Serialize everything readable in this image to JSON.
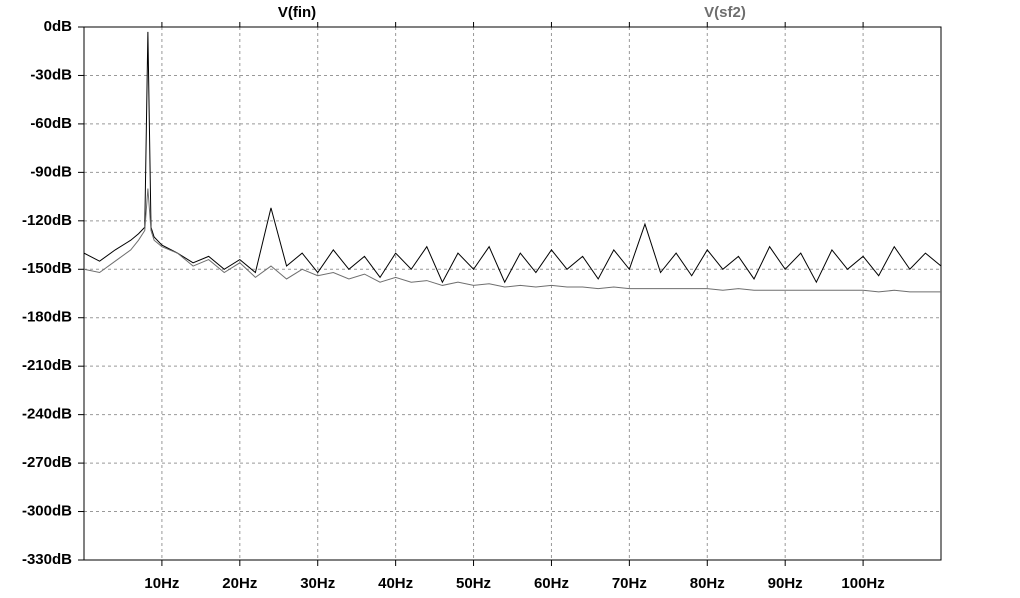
{
  "chart_data": {
    "type": "line",
    "x": [
      0,
      2,
      4,
      6,
      7,
      7.8,
      8.2,
      8.6,
      9,
      10,
      12,
      14,
      16,
      18,
      20,
      22,
      24,
      26,
      28,
      30,
      32,
      34,
      36,
      38,
      40,
      42,
      44,
      46,
      48,
      50,
      52,
      54,
      56,
      58,
      60,
      62,
      64,
      66,
      68,
      70,
      72,
      74,
      76,
      78,
      80,
      82,
      84,
      86,
      88,
      90,
      92,
      94,
      96,
      98,
      100,
      102,
      104,
      106,
      108,
      110
    ],
    "series": [
      {
        "name": "V(fin)",
        "color": "#000000",
        "values": [
          -140,
          -145,
          -138,
          -132,
          -128,
          -124,
          -3,
          -124,
          -130,
          -135,
          -140,
          -146,
          -142,
          -150,
          -144,
          -152,
          -112,
          -148,
          -140,
          -152,
          -138,
          -150,
          -142,
          -155,
          -140,
          -150,
          -136,
          -158,
          -140,
          -150,
          -136,
          -158,
          -140,
          -152,
          -138,
          -150,
          -142,
          -156,
          -138,
          -150,
          -122,
          -152,
          -140,
          -154,
          -138,
          -150,
          -142,
          -156,
          -136,
          -150,
          -140,
          -158,
          -138,
          -150,
          -142,
          -154,
          -136,
          -150,
          -140,
          -148
        ]
      },
      {
        "name": "V(sf2)",
        "color": "#6e6e6e",
        "values": [
          -150,
          -152,
          -145,
          -138,
          -132,
          -126,
          -100,
          -126,
          -132,
          -136,
          -140,
          -148,
          -144,
          -152,
          -146,
          -155,
          -148,
          -156,
          -150,
          -154,
          -152,
          -156,
          -153,
          -158,
          -155,
          -158,
          -157,
          -160,
          -158,
          -160,
          -159,
          -161,
          -160,
          -161,
          -160,
          -161,
          -161,
          -162,
          -161,
          -162,
          -162,
          -162,
          -162,
          -162,
          -162,
          -163,
          -162,
          -163,
          -163,
          -163,
          -163,
          -163,
          -163,
          -163,
          -163,
          -164,
          -163,
          -164,
          -164,
          -164
        ]
      }
    ],
    "xlim": [
      0,
      110
    ],
    "xticks": [
      {
        "value": 10,
        "label": "10Hz"
      },
      {
        "value": 20,
        "label": "20Hz"
      },
      {
        "value": 30,
        "label": "30Hz"
      },
      {
        "value": 40,
        "label": "40Hz"
      },
      {
        "value": 50,
        "label": "50Hz"
      },
      {
        "value": 60,
        "label": "60Hz"
      },
      {
        "value": 70,
        "label": "70Hz"
      },
      {
        "value": 80,
        "label": "80Hz"
      },
      {
        "value": 90,
        "label": "90Hz"
      },
      {
        "value": 100,
        "label": "100Hz"
      }
    ],
    "ylim": [
      -330,
      0
    ],
    "yticks": [
      {
        "value": 0,
        "label": "0dB"
      },
      {
        "value": -30,
        "label": "-30dB"
      },
      {
        "value": -60,
        "label": "-60dB"
      },
      {
        "value": -90,
        "label": "-90dB"
      },
      {
        "value": -120,
        "label": "-120dB"
      },
      {
        "value": -150,
        "label": "-150dB"
      },
      {
        "value": -180,
        "label": "-180dB"
      },
      {
        "value": -210,
        "label": "-210dB"
      },
      {
        "value": -240,
        "label": "-240dB"
      },
      {
        "value": -270,
        "label": "-270dB"
      },
      {
        "value": -300,
        "label": "-300dB"
      },
      {
        "value": -330,
        "label": "-330dB"
      }
    ],
    "grid": true
  }
}
